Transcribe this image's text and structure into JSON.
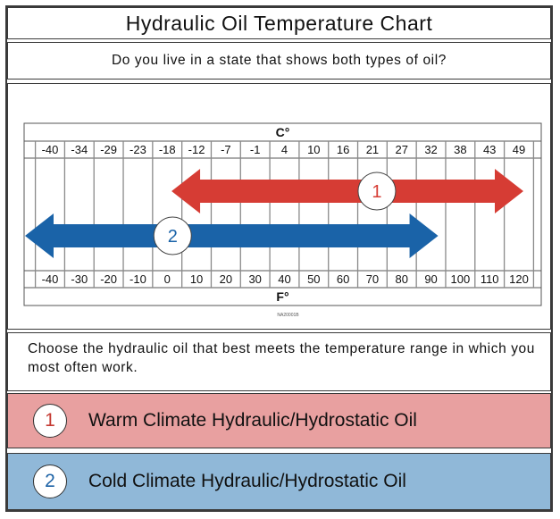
{
  "title": "Hydraulic Oil Temperature Chart",
  "question": "Do you live in a state that shows both types of oil?",
  "instruction": "Choose the hydraulic oil that best meets the temperature range in which you most often work.",
  "oils": [
    {
      "number": "1",
      "label": "Warm Climate Hydraulic/Hydrostatic Oil",
      "color": "#e8a0a0",
      "accent": "#d63c34"
    },
    {
      "number": "2",
      "label": "Cold Climate Hydraulic/Hydrostatic Oil",
      "color": "#90b8d8",
      "accent": "#1a63a8"
    }
  ],
  "chart_data": {
    "type": "range",
    "scale_c_label": "C°",
    "scale_f_label": "F°",
    "celsius_ticks": [
      "-40",
      "-34",
      "-29",
      "-23",
      "-18",
      "-12",
      "-7",
      "-1",
      "4",
      "10",
      "16",
      "21",
      "27",
      "32",
      "38",
      "43",
      "49"
    ],
    "fahrenheit_ticks": [
      "-40",
      "-30",
      "-20",
      "-10",
      "0",
      "10",
      "20",
      "30",
      "40",
      "50",
      "60",
      "70",
      "80",
      "90",
      "100",
      "110",
      "120"
    ],
    "footnote": "NA20001B",
    "ranges": [
      {
        "number": "1",
        "oil": "Warm Climate Hydraulic/Hydrostatic Oil",
        "min_f": 10,
        "max_f": 120,
        "open_ends": true,
        "color": "#d63c34"
      },
      {
        "number": "2",
        "oil": "Cold Climate Hydraulic/Hydrostatic Oil",
        "min_f": -40,
        "max_f": 90,
        "open_ends": true,
        "color": "#1a63a8"
      }
    ]
  }
}
